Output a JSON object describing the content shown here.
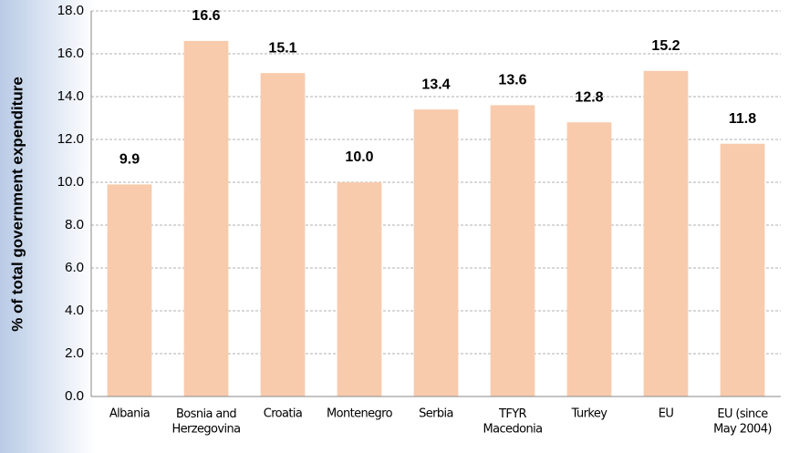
{
  "chart_data": {
    "type": "bar",
    "y_label": "% of total government expenditure",
    "categories": [
      "Albania",
      "Bosnia and\nHerzegovina",
      "Croatia",
      "Montenegro",
      "Serbia",
      "TFYR\nMacedonia",
      "Turkey",
      "EU",
      "EU (since\nMay 2004)"
    ],
    "values": [
      9.9,
      16.6,
      15.1,
      10.0,
      13.4,
      13.6,
      12.8,
      15.2,
      11.8
    ],
    "value_labels": [
      "9.9",
      "16.6",
      "15.1",
      "10.0",
      "13.4",
      "13.6",
      "12.8",
      "15.2",
      "11.8"
    ],
    "color": "#f8cbad",
    "ylim": [
      0,
      18
    ],
    "yticks": [
      {
        "value": 0,
        "label": "0.0"
      },
      {
        "value": 2,
        "label": "2.0"
      },
      {
        "value": 4,
        "label": "4.0"
      },
      {
        "value": 6,
        "label": "6.0"
      },
      {
        "value": 8,
        "label": "8.0"
      },
      {
        "value": 10,
        "label": "10.0"
      },
      {
        "value": 12,
        "label": "12.0"
      },
      {
        "value": 14,
        "label": "14.0"
      },
      {
        "value": 16,
        "label": "16.0"
      },
      {
        "value": 18,
        "label": "18.0"
      }
    ],
    "grid": true
  }
}
